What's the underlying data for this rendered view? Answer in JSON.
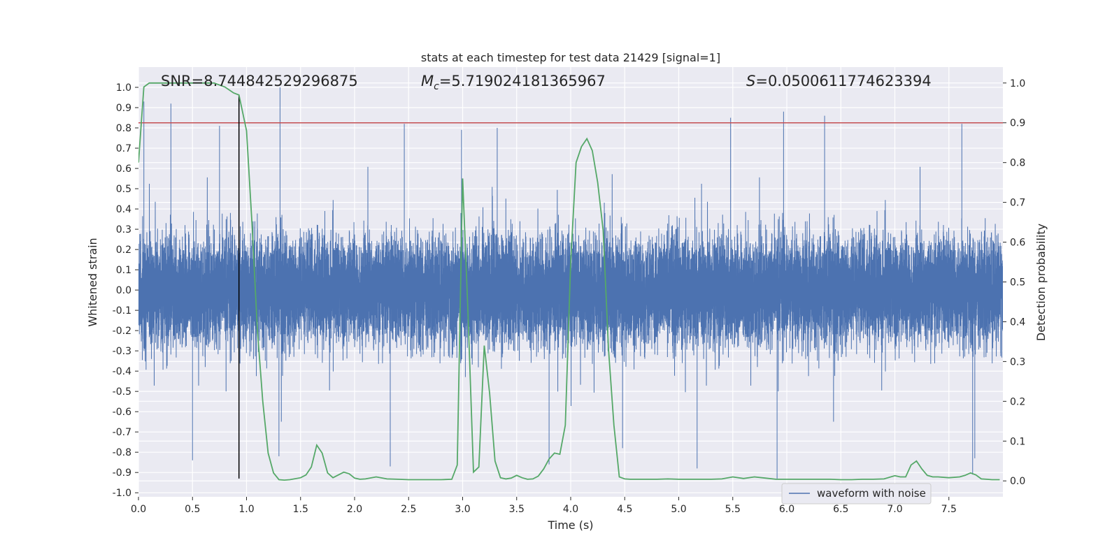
{
  "chart_data": {
    "type": "line",
    "title": "stats at each timestep for test data 21429 [signal=1]",
    "xlabel": "Time (s)",
    "ylabel": "Whitened strain",
    "y2label": "Detection probability",
    "xlim": [
      0.0,
      8.0
    ],
    "ylim": [
      -1.02,
      1.1
    ],
    "y2lim": [
      -0.04,
      1.04
    ],
    "xticks": [
      "0.0",
      "0.5",
      "1.0",
      "1.5",
      "2.0",
      "2.5",
      "3.0",
      "3.5",
      "4.0",
      "4.5",
      "5.0",
      "5.5",
      "6.0",
      "6.5",
      "7.0",
      "7.5"
    ],
    "yticks": [
      "1.0",
      "0.9",
      "0.8",
      "0.7",
      "0.6",
      "0.5",
      "0.4",
      "0.3",
      "0.2",
      "0.1",
      "0.0",
      "-0.1",
      "-0.2",
      "-0.3",
      "-0.4",
      "-0.5",
      "-0.6",
      "-0.7",
      "-0.8",
      "-0.9",
      "-1.0"
    ],
    "y2ticks": [
      "1.0",
      "0.9",
      "0.8",
      "0.7",
      "0.6",
      "0.5",
      "0.4",
      "0.3",
      "0.2",
      "0.1",
      "0.0"
    ],
    "grid": true,
    "legend": {
      "location": "lower-right",
      "entries": [
        "waveform with noise"
      ]
    },
    "stats": {
      "snr": "SNR=8.744842529296875",
      "mc": "=5.719024181365967",
      "s": "=0.0500611774623394"
    },
    "threshold_line": {
      "axis": "y2",
      "value": 0.9,
      "color": "#c44e52"
    },
    "merger_marker": {
      "x": 0.93,
      "y_from": -0.93,
      "y_to": 0.96,
      "color": "#000000"
    },
    "series": [
      {
        "name": "waveform with noise",
        "axis": "y",
        "color": "#4c72b0",
        "style": "dense-noise",
        "sample_rate": 2048,
        "envelope": 0.3,
        "peaks": [
          {
            "x": 0.05,
            "y": 0.93
          },
          {
            "x": 0.3,
            "y": 0.92
          },
          {
            "x": 0.5,
            "y": -0.84
          },
          {
            "x": 0.75,
            "y": 0.81
          },
          {
            "x": 1.31,
            "y": 1.0
          },
          {
            "x": 1.3,
            "y": -0.82
          },
          {
            "x": 2.33,
            "y": -0.87
          },
          {
            "x": 2.46,
            "y": 0.82
          },
          {
            "x": 2.99,
            "y": 0.79
          },
          {
            "x": 3.32,
            "y": 0.8
          },
          {
            "x": 3.8,
            "y": -0.86
          },
          {
            "x": 4.48,
            "y": -0.78
          },
          {
            "x": 5.17,
            "y": -0.88
          },
          {
            "x": 5.48,
            "y": 0.85
          },
          {
            "x": 5.91,
            "y": -0.93
          },
          {
            "x": 5.97,
            "y": 0.88
          },
          {
            "x": 6.35,
            "y": 0.86
          },
          {
            "x": 7.62,
            "y": 0.82
          },
          {
            "x": 7.72,
            "y": -0.91
          },
          {
            "x": 7.74,
            "y": -0.83
          }
        ]
      },
      {
        "name": "detection probability",
        "axis": "y2",
        "color": "#55a868",
        "x": [
          0.0,
          0.05,
          0.1,
          0.2,
          0.3,
          0.4,
          0.5,
          0.6,
          0.7,
          0.8,
          0.88,
          0.93,
          1.0,
          1.05,
          1.1,
          1.15,
          1.2,
          1.25,
          1.3,
          1.35,
          1.4,
          1.5,
          1.55,
          1.6,
          1.65,
          1.7,
          1.75,
          1.8,
          1.85,
          1.9,
          1.95,
          2.0,
          2.05,
          2.1,
          2.2,
          2.3,
          2.4,
          2.5,
          2.6,
          2.7,
          2.8,
          2.9,
          2.95,
          3.0,
          3.05,
          3.1,
          3.15,
          3.2,
          3.25,
          3.3,
          3.35,
          3.4,
          3.45,
          3.5,
          3.55,
          3.6,
          3.65,
          3.7,
          3.75,
          3.8,
          3.85,
          3.9,
          3.95,
          4.0,
          4.05,
          4.1,
          4.15,
          4.2,
          4.25,
          4.3,
          4.35,
          4.4,
          4.45,
          4.5,
          4.55,
          4.6,
          4.7,
          4.8,
          4.9,
          5.0,
          5.1,
          5.2,
          5.3,
          5.4,
          5.5,
          5.6,
          5.7,
          5.8,
          5.9,
          6.0,
          6.1,
          6.2,
          6.3,
          6.4,
          6.5,
          6.6,
          6.7,
          6.8,
          6.9,
          7.0,
          7.05,
          7.1,
          7.15,
          7.2,
          7.25,
          7.3,
          7.35,
          7.4,
          7.5,
          7.6,
          7.65,
          7.7,
          7.75,
          7.8,
          7.85,
          7.9,
          7.97
        ],
        "y": [
          0.8,
          0.99,
          1.0,
          1.0,
          1.0,
          1.0,
          1.0,
          1.0,
          1.0,
          0.99,
          0.975,
          0.97,
          0.88,
          0.65,
          0.38,
          0.2,
          0.07,
          0.02,
          0.003,
          0.002,
          0.003,
          0.008,
          0.015,
          0.035,
          0.09,
          0.07,
          0.02,
          0.008,
          0.015,
          0.022,
          0.018,
          0.007,
          0.004,
          0.005,
          0.01,
          0.005,
          0.004,
          0.003,
          0.003,
          0.003,
          0.003,
          0.004,
          0.04,
          0.76,
          0.42,
          0.022,
          0.035,
          0.34,
          0.22,
          0.05,
          0.008,
          0.005,
          0.007,
          0.014,
          0.008,
          0.004,
          0.005,
          0.012,
          0.03,
          0.055,
          0.07,
          0.067,
          0.14,
          0.55,
          0.8,
          0.84,
          0.86,
          0.83,
          0.75,
          0.63,
          0.33,
          0.14,
          0.01,
          0.005,
          0.004,
          0.004,
          0.004,
          0.004,
          0.005,
          0.004,
          0.004,
          0.004,
          0.004,
          0.005,
          0.01,
          0.006,
          0.01,
          0.007,
          0.004,
          0.004,
          0.004,
          0.004,
          0.004,
          0.004,
          0.003,
          0.003,
          0.004,
          0.004,
          0.005,
          0.013,
          0.01,
          0.01,
          0.04,
          0.05,
          0.03,
          0.014,
          0.01,
          0.01,
          0.008,
          0.01,
          0.014,
          0.02,
          0.015,
          0.005,
          0.004,
          0.003,
          0.003
        ]
      }
    ]
  }
}
